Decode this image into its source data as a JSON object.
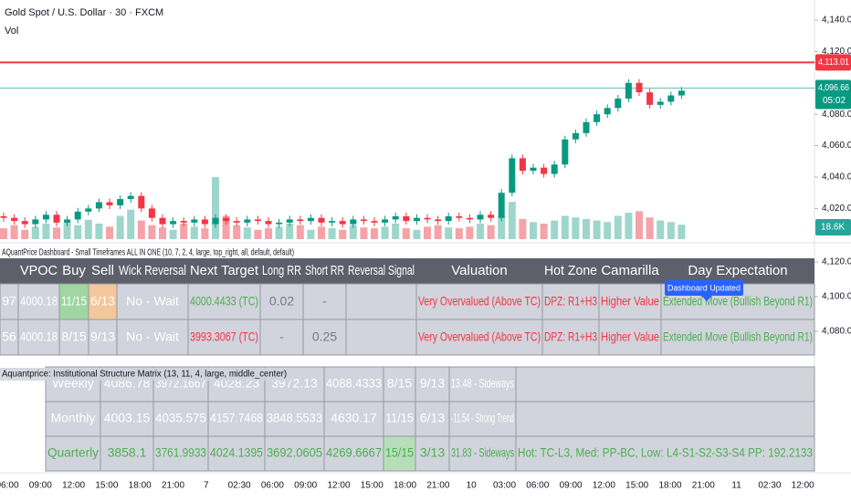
{
  "header": {
    "symbol": "Gold Spot / U.S. Dollar · 30 · FXCM",
    "volume_label": "Vol"
  },
  "chart": {
    "type": "candlestick",
    "first_open": 4015,
    "closes": [
      4014,
      4012,
      4010,
      4013,
      4016,
      4011,
      4013,
      4018,
      4020,
      4024,
      4022,
      4026,
      4028,
      4020,
      4014,
      4010,
      4012,
      4011,
      4013,
      4010,
      4014,
      4012,
      4011,
      4013,
      4012,
      4010,
      4011,
      4013,
      4012,
      4014,
      4011,
      4012,
      4010,
      4013,
      4012,
      4011,
      4013,
      4015,
      4012,
      4014,
      4013,
      4012,
      4015,
      4014,
      4013,
      4016,
      4014,
      4030,
      4052,
      4044,
      4046,
      4042,
      4048,
      4064,
      4068,
      4075,
      4080,
      4084,
      4090,
      4100,
      4094,
      4086,
      4088,
      4092,
      4095
    ],
    "volumes": [
      14,
      18,
      12,
      16,
      20,
      15,
      22,
      18,
      25,
      20,
      16,
      30,
      38,
      24,
      18,
      15,
      12,
      20,
      16,
      14,
      80,
      30,
      18,
      15,
      12,
      14,
      16,
      20,
      18,
      12,
      16,
      14,
      12,
      18,
      15,
      14,
      16,
      20,
      14,
      12,
      16,
      18,
      15,
      14,
      16,
      20,
      18,
      30,
      48,
      26,
      22,
      20,
      24,
      30,
      28,
      26,
      24,
      22,
      30,
      34,
      36,
      28,
      24,
      22,
      18.6
    ],
    "price_ticks": [
      {
        "value": 4140,
        "label": "4,140.00"
      },
      {
        "value": 4120,
        "label": "4,120.00"
      },
      {
        "value": 4080,
        "label": "4,080.00"
      },
      {
        "value": 4060,
        "label": "4,060.00"
      },
      {
        "value": 4040,
        "label": "4,040.00"
      },
      {
        "value": 4020,
        "label": "4,020.00"
      }
    ],
    "lower_ticks": [
      {
        "value": 4120,
        "label": "4,120.00"
      },
      {
        "value": 4100,
        "label": "4,100.00"
      },
      {
        "value": 4080,
        "label": "4,080.00"
      }
    ],
    "alert_level": {
      "value": 4113.01,
      "label": "4,113.01",
      "color": "#f23645"
    },
    "last_price": {
      "value": 4096.66,
      "label": "4,096.66",
      "countdown": "05:02",
      "color": "#089981"
    },
    "volume_badge": {
      "value": 18.6,
      "label": "18.6K"
    },
    "time_labels": [
      "06:00",
      "09:00",
      "12:00",
      "15:00",
      "18:00",
      "21:00",
      "7",
      "02:30",
      "06:00",
      "09:00",
      "12:00",
      "15:00",
      "18:00",
      "21:00",
      "10",
      "03:00",
      "06:00",
      "09:00",
      "12:00",
      "15:00",
      "18:00",
      "21:00",
      "11",
      "02:30",
      "12:00"
    ]
  },
  "dashboard": {
    "caption": "AQuantPrice Dashboard - Small Timeframes ALL IN ONE (10, 7, 2, 4, large, top_right, all, default, default)",
    "columns": [
      "VPOC",
      "Buy",
      "Sell",
      "Wick Reversal",
      "Next Target",
      "Long RR",
      "Short RR",
      "Reversal Signal",
      "Valuation",
      "Hot Zone",
      "Camarilla",
      "Day Expectation"
    ],
    "rows": [
      [
        "97",
        "4000.18",
        "11/15",
        "6/13",
        "No - Wait",
        "4000.4433 (TC)",
        "0.02",
        "-",
        null,
        "Very Overvalued (Above TC)",
        "DPZ: R1+H3",
        "Higher Value",
        "Extended Move (Bullish Beyond R1)"
      ],
      [
        "56",
        "4000.18",
        "8/15",
        "9/13",
        "No - Wait",
        "3993.3067 (TC)",
        "-",
        "0.25",
        null,
        "Very Overvalued (Above TC)",
        "DPZ: R1+H3",
        "Higher Value",
        "Extended Move (Bullish Beyond R1)"
      ]
    ],
    "tooltip": "Dashboard Updated"
  },
  "matrix": {
    "caption": "Aquantprice: Institutional Structure Matrix (13, 11, 4, large, middle_center)",
    "rows": [
      [
        "Weekly",
        "4086.78",
        "3972.1667",
        "4028.23",
        "3972.13",
        "4088.4333",
        "8/15",
        "9/13",
        "13.48 - Sideways",
        null
      ],
      [
        "Monthly",
        "4003.15",
        "4035.575",
        "4157.7468",
        "3848.5533",
        "4630.17",
        "11/15",
        "6/13",
        "-11.54 - Strong Trend",
        null
      ],
      [
        "Quarterly",
        "3858.1",
        "3761.9933",
        "4024.1395",
        "3692.0605",
        "4269.6667",
        "15/15",
        "3/13",
        "31.83 - Sideways",
        "Hot: TC-L3, Med: PP-BC, Low: L4-S1-S2-S3-S4 PP: 192.2133"
      ]
    ]
  }
}
